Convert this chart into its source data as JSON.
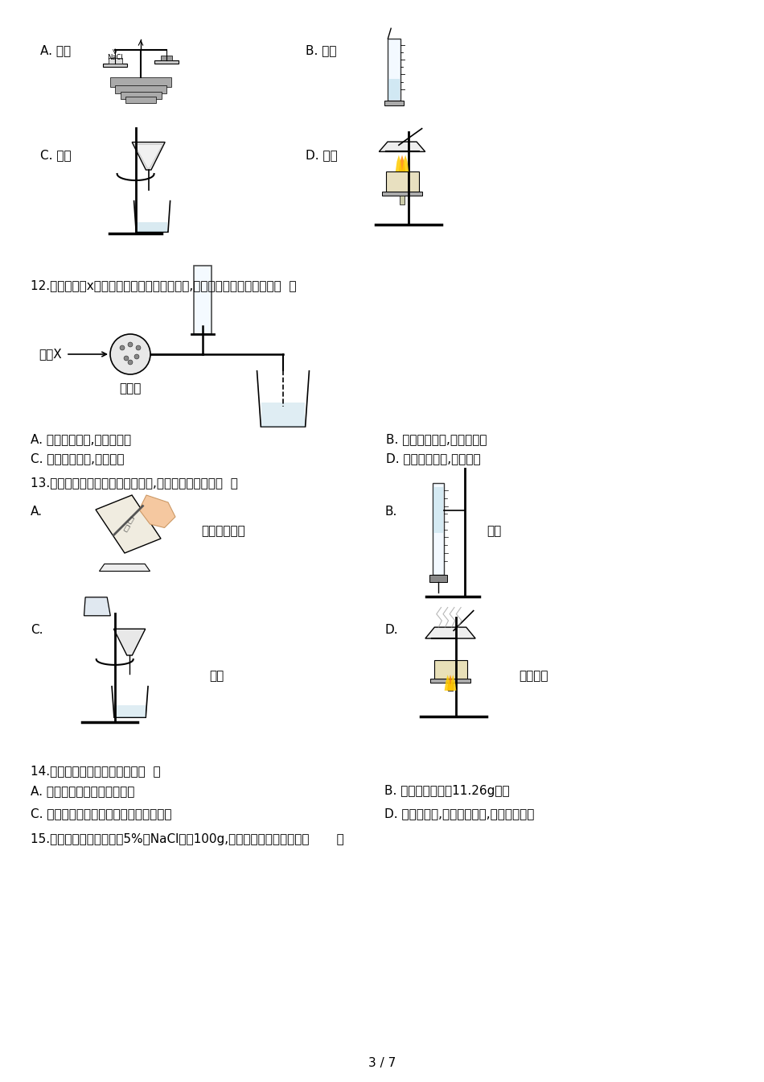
{
  "bg_color": "#ffffff",
  "page_width": 9.5,
  "page_height": 13.44,
  "dpi": 100,
  "footer_text": "3 / 7",
  "q11_label_A": "A. 称量",
  "q11_label_B": "B. 溶解",
  "q11_label_C": "C. 过滤",
  "q11_label_D": "D. 蒸发",
  "q12_text": "12.如图是气体x的枯燥、收集、尾气吸收装置,该气体可能的物理性质是〔  〕",
  "q12_label_x": "气体X",
  "q12_label_base": "碱石灰",
  "q12_opt_A": "A. 密度比空气大,极易溶于水",
  "q12_opt_B": "B. 密度比空气小,极易溶于水",
  "q12_opt_C": "C. 密度比空气大,难溶于水",
  "q12_opt_D": "D. 密度比空气小,难溶于水",
  "q13_text": "13.如下图是实验过程中的局部操作,其中正确的选项是〔  〕",
  "q13_A_label": "A.",
  "q13_A_sub": "取一定量粗盐",
  "q13_B_label": "B.",
  "q13_B_sub": "溶解",
  "q13_C_label": "C.",
  "q13_C_sub": "过滤",
  "q13_D_label": "D.",
  "q13_D_sub": "蒸发结晶",
  "q14_text": "14.以下实验操作符合标准的是〔  〕",
  "q14_opt_A": "A. 在量筒中溶解氢氧化钠固体",
  "q14_opt_B": "B. 用托盘天平称取11.26g食盐",
  "q14_opt_C": "C. 用完滴瓶上的滴管不需水冲洗放回滴瓶",
  "q14_opt_D": "D. 熄灭酒精灯,可用灯帽盖灭,也可用嘴吹灭",
  "q15_text": "15.现配制溶质质量分数为5%的NaCl溶液100g,以下操作错误的图示是〔       〕"
}
